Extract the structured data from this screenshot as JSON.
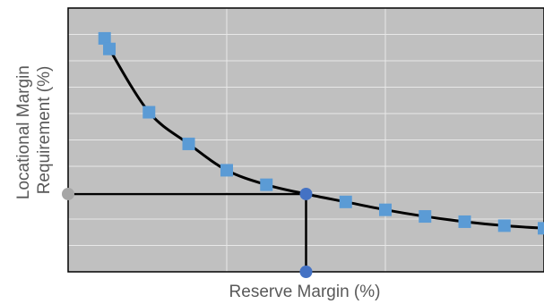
{
  "chart_data": {
    "type": "scatter",
    "title": "",
    "xlabel": "Reserve Margin (%)",
    "ylabel_lines": [
      "Locational Margin",
      "Requirement (%)"
    ],
    "xlim": [
      0,
      3
    ],
    "ylim": [
      0,
      10
    ],
    "grid": true,
    "x_grid_step": 1,
    "y_grid_step": 1,
    "colors": {
      "plot_background": "#c0c0c0",
      "grid": "#e8e8e8",
      "curve": "#000000",
      "marker": "#5b9bd5",
      "highlight_point": "#4472c4",
      "reference_point": "#a6a6a6",
      "reference_line": "#000000"
    },
    "series": [
      {
        "values": [
          {
            "x": 0.23,
            "y": 8.85
          },
          {
            "x": 0.26,
            "y": 8.45
          },
          {
            "x": 0.51,
            "y": 6.05
          },
          {
            "x": 0.76,
            "y": 4.85
          },
          {
            "x": 1.0,
            "y": 3.85
          },
          {
            "x": 1.25,
            "y": 3.3
          },
          {
            "x": 1.5,
            "y": 2.95
          },
          {
            "x": 1.75,
            "y": 2.65
          },
          {
            "x": 2.0,
            "y": 2.35
          },
          {
            "x": 2.25,
            "y": 2.1
          },
          {
            "x": 2.5,
            "y": 1.9
          },
          {
            "x": 2.75,
            "y": 1.75
          },
          {
            "x": 3.0,
            "y": 1.65
          }
        ]
      }
    ],
    "highlight": {
      "x": 1.5,
      "y": 2.95
    }
  }
}
